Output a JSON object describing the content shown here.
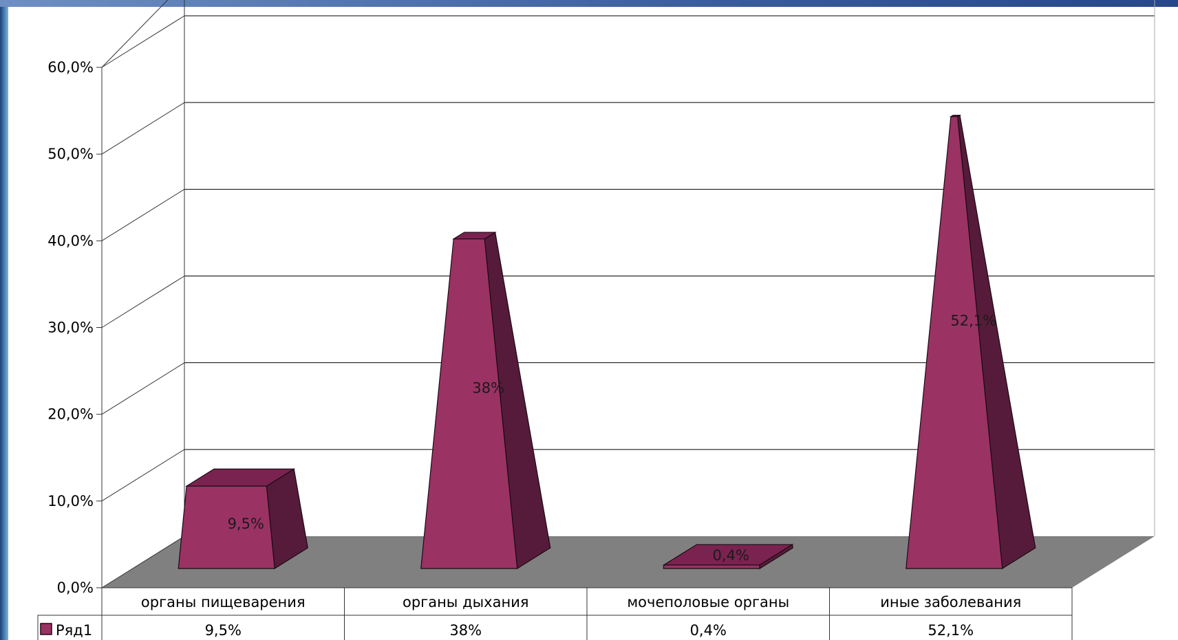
{
  "chart_data": {
    "type": "bar",
    "shape": "pyramid-3d",
    "categories": [
      "органы пищеварения",
      "органы дыхания",
      "мочеполовые органы",
      "иные заболевания"
    ],
    "series": [
      {
        "name": "Ряд1",
        "values": [
          9.5,
          38,
          0.4,
          52.1
        ],
        "labels": [
          "9,5%",
          "38%",
          "0,4%",
          "52,1%"
        ]
      }
    ],
    "y_ticks": [
      0,
      10,
      20,
      30,
      40,
      50,
      60
    ],
    "y_tick_labels": [
      "0,0%",
      "10,0%",
      "20,0%",
      "30,0%",
      "40,0%",
      "50,0%",
      "60,0%"
    ],
    "ylim": [
      0,
      60
    ],
    "title": "",
    "xlabel": "",
    "ylabel": "",
    "grid": true,
    "data_table": true,
    "legend_placement": "bottom-left in data table",
    "colors": {
      "front": "#9a3264",
      "side": "#561b3a",
      "top": "#7a2350",
      "floor": "#808080",
      "grid": "#000000"
    }
  }
}
